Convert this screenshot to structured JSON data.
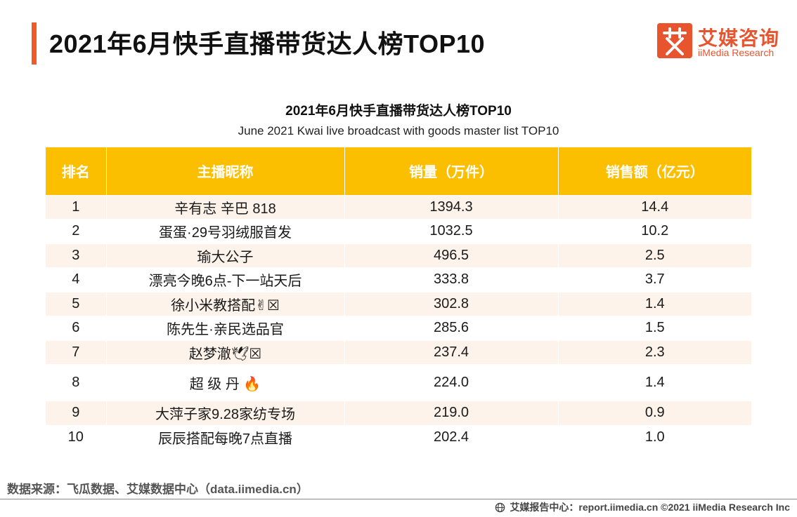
{
  "header": {
    "title": "2021年6月快手直播带货达人榜TOP10",
    "logo_cn": "艾媒咨询",
    "logo_en": "iiMedia Research",
    "accent_color": "#f15a29"
  },
  "table": {
    "title": "2021年6月快手直播带货达人榜TOP10",
    "subtitle": "June 2021 Kwai live broadcast with goods master list TOP10",
    "header_color": "#fbbf00",
    "columns": [
      "排名",
      "主播昵称",
      "销量（万件）",
      "销售额（亿元）"
    ],
    "rows": [
      {
        "rank": "1",
        "name": "辛有志 辛巴 818",
        "volume": "1394.3",
        "revenue": "14.4"
      },
      {
        "rank": "2",
        "name": "蛋蛋·29号羽绒服首发",
        "volume": "1032.5",
        "revenue": "10.2"
      },
      {
        "rank": "3",
        "name": "瑜大公子",
        "volume": "496.5",
        "revenue": "2.5"
      },
      {
        "rank": "4",
        "name": "漂亮今晚6点-下一站天后",
        "volume": "333.8",
        "revenue": "3.7"
      },
      {
        "rank": "5",
        "name": "徐小米教搭配✌☒",
        "volume": "302.8",
        "revenue": "1.4"
      },
      {
        "rank": "6",
        "name": "陈先生·亲民选品官",
        "volume": "285.6",
        "revenue": "1.5"
      },
      {
        "rank": "7",
        "name": "赵梦澈🕊☒",
        "volume": "237.4",
        "revenue": "2.3"
      },
      {
        "rank": "8",
        "name": "超 级 丹 🔥",
        "volume": "224.0",
        "revenue": "1.4"
      },
      {
        "rank": "9",
        "name": "大萍子家9.28家纺专场",
        "volume": "219.0",
        "revenue": "0.9"
      },
      {
        "rank": "10",
        "name": "辰辰搭配每晚7点直播",
        "volume": "202.4",
        "revenue": "1.0"
      }
    ]
  },
  "source": "数据来源：飞瓜数据、艾媒数据中心（data.iimedia.cn）",
  "footer": {
    "icon": "globe-icon",
    "text": "艾媒报告中心：report.iimedia.cn  ©2021  iiMedia Research  Inc"
  }
}
